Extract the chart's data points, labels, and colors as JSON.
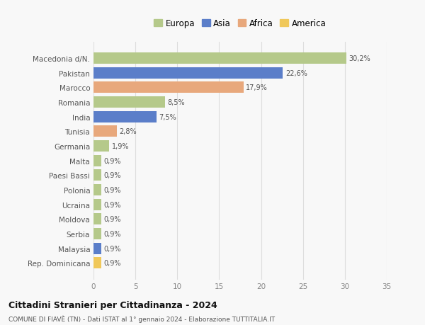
{
  "categories": [
    "Rep. Dominicana",
    "Malaysia",
    "Serbia",
    "Moldova",
    "Ucraina",
    "Polonia",
    "Paesi Bassi",
    "Malta",
    "Germania",
    "Tunisia",
    "India",
    "Romania",
    "Marocco",
    "Pakistan",
    "Macedonia d/N."
  ],
  "values": [
    0.9,
    0.9,
    0.9,
    0.9,
    0.9,
    0.9,
    0.9,
    0.9,
    1.9,
    2.8,
    7.5,
    8.5,
    17.9,
    22.6,
    30.2
  ],
  "colors": [
    "#f0c85a",
    "#5b7ec9",
    "#b5c98a",
    "#b5c98a",
    "#b5c98a",
    "#b5c98a",
    "#b5c98a",
    "#b5c98a",
    "#b5c98a",
    "#e8a87c",
    "#5b7ec9",
    "#b5c98a",
    "#e8a87c",
    "#5b7ec9",
    "#b5c98a"
  ],
  "labels": [
    "0,9%",
    "0,9%",
    "0,9%",
    "0,9%",
    "0,9%",
    "0,9%",
    "0,9%",
    "0,9%",
    "1,9%",
    "2,8%",
    "7,5%",
    "8,5%",
    "17,9%",
    "22,6%",
    "30,2%"
  ],
  "legend_labels": [
    "Europa",
    "Asia",
    "Africa",
    "America"
  ],
  "legend_colors": [
    "#b5c98a",
    "#5b7ec9",
    "#e8a87c",
    "#f0c85a"
  ],
  "title": "Cittadini Stranieri per Cittadinanza - 2024",
  "subtitle": "COMUNE DI FIAVÈ (TN) - Dati ISTAT al 1° gennaio 2024 - Elaborazione TUTTITALIA.IT",
  "xlim": [
    0,
    35
  ],
  "xticks": [
    0,
    5,
    10,
    15,
    20,
    25,
    30,
    35
  ],
  "bg_color": "#f8f8f8",
  "grid_color": "#dddddd",
  "bar_height": 0.78
}
